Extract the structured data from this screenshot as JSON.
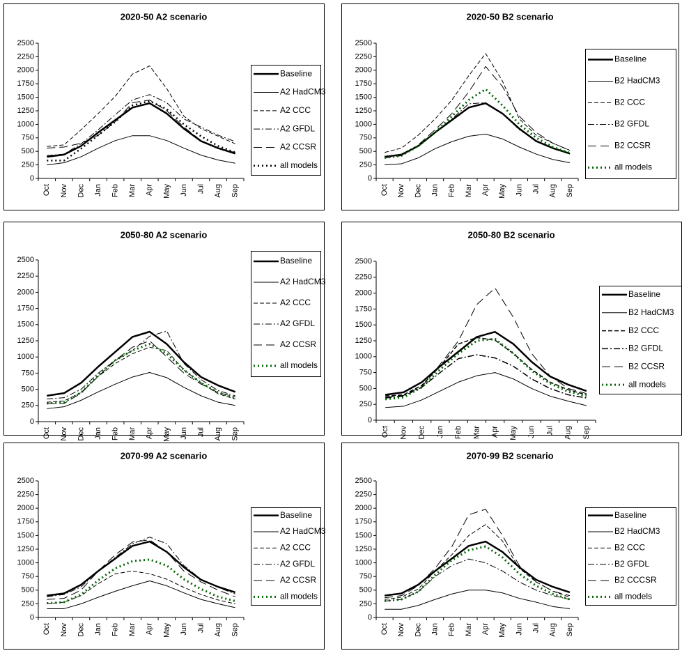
{
  "chart_data": [
    {
      "type": "line",
      "title": "2020-50 A2 scenario",
      "categories": [
        "Oct",
        "Nov",
        "Dec",
        "Jan",
        "Feb",
        "Mar",
        "Apr",
        "May",
        "Jun",
        "Jul",
        "Aug",
        "Sep"
      ],
      "ylim": [
        0,
        2500
      ],
      "yticks": [
        0,
        250,
        500,
        750,
        1000,
        1250,
        1500,
        1750,
        2000,
        2250,
        2500
      ],
      "series": [
        {
          "name": "Baseline",
          "color": "#000000",
          "line": "solid",
          "width": 2.5,
          "values": [
            400,
            440,
            600,
            850,
            1080,
            1310,
            1390,
            1200,
            920,
            690,
            560,
            460
          ]
        },
        {
          "name": "A2 HadCM3",
          "color": "#000000",
          "line": "solid",
          "width": 1,
          "values": [
            250,
            290,
            400,
            560,
            700,
            790,
            790,
            700,
            560,
            430,
            340,
            280
          ]
        },
        {
          "name": "A2 CCC",
          "color": "#000000",
          "line": "dashed",
          "width": 1,
          "values": [
            590,
            620,
            900,
            1200,
            1520,
            1930,
            2080,
            1660,
            1150,
            920,
            780,
            640
          ]
        },
        {
          "name": "A2 GFDL",
          "color": "#000000",
          "line": "dash-dot",
          "width": 1,
          "values": [
            420,
            450,
            640,
            900,
            1180,
            1450,
            1550,
            1400,
            1100,
            950,
            800,
            680
          ]
        },
        {
          "name": "A2 CCSR",
          "color": "#000000",
          "line": "long-dash",
          "width": 1,
          "values": [
            560,
            580,
            650,
            800,
            1050,
            1400,
            1450,
            1250,
            950,
            700,
            550,
            480
          ]
        },
        {
          "name": "all models",
          "color": "#000000",
          "line": "dotted",
          "width": 2.5,
          "values": [
            330,
            330,
            550,
            800,
            1050,
            1350,
            1430,
            1280,
            1000,
            780,
            600,
            480
          ]
        }
      ]
    },
    {
      "type": "line",
      "title": "2020-50 B2 scenario",
      "categories": [
        "Oct",
        "Nov",
        "Dec",
        "Jan",
        "Feb",
        "Mar",
        "Apr",
        "May",
        "Jun",
        "Jul",
        "Aug",
        "Sep"
      ],
      "ylim": [
        0,
        2500
      ],
      "yticks": [
        0,
        250,
        500,
        750,
        1000,
        1250,
        1500,
        1750,
        2000,
        2250,
        2500
      ],
      "series": [
        {
          "name": "Baseline",
          "color": "#000000",
          "line": "solid",
          "width": 2.5,
          "values": [
            400,
            440,
            600,
            850,
            1080,
            1310,
            1390,
            1200,
            920,
            690,
            560,
            460
          ]
        },
        {
          "name": "B2 HadCM3",
          "color": "#000000",
          "line": "solid",
          "width": 1,
          "values": [
            250,
            270,
            380,
            550,
            680,
            780,
            820,
            730,
            580,
            450,
            350,
            290
          ]
        },
        {
          "name": "B2 CCC",
          "color": "#000000",
          "line": "dashed",
          "width": 1,
          "values": [
            480,
            560,
            800,
            1100,
            1450,
            1900,
            2310,
            1800,
            1100,
            800,
            650,
            520
          ]
        },
        {
          "name": "B2 GFDL",
          "color": "#000000",
          "line": "dash-dot",
          "width": 1,
          "values": [
            380,
            420,
            600,
            850,
            1100,
            1380,
            1400,
            1200,
            900,
            700,
            550,
            450
          ]
        },
        {
          "name": "B2 CCSR",
          "color": "#000000",
          "line": "long-dash",
          "width": 1,
          "values": [
            400,
            430,
            620,
            900,
            1200,
            1600,
            2070,
            1700,
            1150,
            850,
            650,
            520
          ]
        },
        {
          "name": "all models",
          "color": "#006400",
          "line": "dotted",
          "width": 3,
          "values": [
            380,
            420,
            600,
            850,
            1150,
            1450,
            1650,
            1350,
            1000,
            750,
            580,
            470
          ]
        }
      ]
    },
    {
      "type": "line",
      "title": "2050-80 A2 scenario",
      "categories": [
        "Oct",
        "Nov",
        "Dec",
        "Jan",
        "Feb",
        "Mar",
        "Apr",
        "May",
        "Jun",
        "Jul",
        "Aug",
        "Sep"
      ],
      "ylim": [
        0,
        2500
      ],
      "yticks": [
        0,
        250,
        500,
        750,
        1000,
        1250,
        1500,
        1750,
        2000,
        2250,
        2500
      ],
      "series": [
        {
          "name": "Baseline",
          "color": "#000000",
          "line": "solid",
          "width": 2.5,
          "values": [
            400,
            440,
            600,
            850,
            1080,
            1310,
            1390,
            1200,
            920,
            690,
            560,
            460
          ]
        },
        {
          "name": "A2 HadCM3",
          "color": "#000000",
          "line": "solid",
          "width": 1,
          "values": [
            200,
            230,
            330,
            460,
            580,
            690,
            760,
            680,
            530,
            400,
            300,
            250
          ]
        },
        {
          "name": "A2 CCC",
          "color": "#000000",
          "line": "dashed",
          "width": 1,
          "values": [
            300,
            320,
            450,
            700,
            900,
            1050,
            1150,
            1100,
            800,
            600,
            430,
            350
          ]
        },
        {
          "name": "A2 GFDL",
          "color": "#000000",
          "line": "dash-dot",
          "width": 1,
          "values": [
            350,
            370,
            500,
            750,
            950,
            1100,
            1320,
            1400,
            900,
            650,
            480,
            400
          ]
        },
        {
          "name": "A2 CCSR",
          "color": "#000000",
          "line": "long-dash",
          "width": 1,
          "values": [
            280,
            280,
            440,
            700,
            950,
            1150,
            1250,
            1000,
            750,
            580,
            450,
            380
          ]
        },
        {
          "name": "all models",
          "color": "#006400",
          "line": "dotted",
          "width": 3,
          "values": [
            280,
            300,
            450,
            720,
            950,
            1100,
            1200,
            1050,
            800,
            600,
            450,
            370
          ]
        }
      ]
    },
    {
      "type": "line",
      "title": "2050-80 B2 scenario",
      "categories": [
        "Oct",
        "Nov",
        "Dec",
        "Jan",
        "Feb",
        "Mar",
        "Apr",
        "May",
        "Jun",
        "Jul",
        "Aug",
        "Sep"
      ],
      "ylim": [
        0,
        2500
      ],
      "yticks": [
        0,
        250,
        500,
        750,
        1000,
        1250,
        1500,
        1750,
        2000,
        2250,
        2500
      ],
      "series": [
        {
          "name": "Baseline",
          "color": "#000000",
          "line": "solid",
          "width": 2.5,
          "values": [
            400,
            440,
            600,
            850,
            1080,
            1310,
            1390,
            1200,
            920,
            690,
            560,
            460
          ]
        },
        {
          "name": "B2 HadCM3",
          "color": "#000000",
          "line": "solid",
          "width": 1,
          "values": [
            200,
            220,
            320,
            460,
            600,
            700,
            750,
            650,
            500,
            380,
            300,
            230
          ]
        },
        {
          "name": "B2 CCC",
          "color": "#000000",
          "line": "dashed",
          "width": 1.5,
          "values": [
            380,
            400,
            550,
            850,
            1200,
            1300,
            1260,
            1050,
            800,
            600,
            480,
            400
          ]
        },
        {
          "name": "B2 GFDL",
          "color": "#000000",
          "line": "dash-dot",
          "width": 1.5,
          "values": [
            350,
            380,
            520,
            750,
            970,
            1030,
            980,
            850,
            650,
            500,
            400,
            350
          ]
        },
        {
          "name": "B2 CCSR",
          "color": "#000000",
          "line": "long-dash",
          "width": 1,
          "values": [
            360,
            390,
            530,
            880,
            1250,
            1820,
            2080,
            1620,
            1050,
            700,
            500,
            420
          ]
        },
        {
          "name": "all models",
          "color": "#006400",
          "line": "dotted",
          "width": 3,
          "values": [
            330,
            360,
            520,
            800,
            1050,
            1250,
            1280,
            1050,
            780,
            580,
            450,
            380
          ]
        }
      ]
    },
    {
      "type": "line",
      "title": "2070-99 A2 scenario",
      "categories": [
        "Oct",
        "Nov",
        "Dec",
        "Jan",
        "Feb",
        "Mar",
        "Apr",
        "May",
        "Jun",
        "Jul",
        "Aug",
        "Sep"
      ],
      "ylim": [
        0,
        2500
      ],
      "yticks": [
        0,
        250,
        500,
        750,
        1000,
        1250,
        1500,
        1750,
        2000,
        2250,
        2500
      ],
      "series": [
        {
          "name": "Baseline",
          "color": "#000000",
          "line": "solid",
          "width": 2.5,
          "values": [
            400,
            440,
            600,
            850,
            1080,
            1310,
            1390,
            1200,
            920,
            690,
            560,
            460
          ]
        },
        {
          "name": "A2 HadCM3",
          "color": "#000000",
          "line": "solid",
          "width": 1,
          "values": [
            160,
            160,
            250,
            370,
            480,
            580,
            670,
            580,
            450,
            330,
            250,
            180
          ]
        },
        {
          "name": "A2 CCC",
          "color": "#000000",
          "line": "dashed",
          "width": 1,
          "values": [
            250,
            280,
            400,
            620,
            800,
            850,
            800,
            700,
            550,
            420,
            320,
            250
          ]
        },
        {
          "name": "A2 GFDL",
          "color": "#000000",
          "line": "dash-dot",
          "width": 1,
          "values": [
            380,
            420,
            560,
            850,
            1100,
            1350,
            1470,
            1350,
            950,
            700,
            550,
            430
          ]
        },
        {
          "name": "A2 CCSR",
          "color": "#000000",
          "line": "long-dash",
          "width": 1,
          "values": [
            330,
            350,
            500,
            850,
            1150,
            1380,
            1420,
            1200,
            850,
            650,
            500,
            380
          ]
        },
        {
          "name": "all models",
          "color": "#006400",
          "line": "dotted",
          "width": 3,
          "values": [
            260,
            280,
            420,
            680,
            900,
            1030,
            1060,
            950,
            700,
            520,
            380,
            300
          ]
        }
      ]
    },
    {
      "type": "line",
      "title": "2070-99 B2 scenario",
      "categories": [
        "Oct",
        "Nov",
        "Dec",
        "Jan",
        "Feb",
        "Mar",
        "Apr",
        "May",
        "Jun",
        "Jul",
        "Aug",
        "Sep"
      ],
      "ylim": [
        0,
        2500
      ],
      "yticks": [
        0,
        250,
        500,
        750,
        1000,
        1250,
        1500,
        1750,
        2000,
        2250,
        2500
      ],
      "series": [
        {
          "name": "Baseline",
          "color": "#000000",
          "line": "solid",
          "width": 2.5,
          "values": [
            400,
            440,
            600,
            850,
            1080,
            1310,
            1390,
            1200,
            920,
            690,
            560,
            460
          ]
        },
        {
          "name": "B2 HadCM3",
          "color": "#000000",
          "line": "solid",
          "width": 1,
          "values": [
            150,
            150,
            220,
            330,
            430,
            500,
            500,
            450,
            350,
            280,
            200,
            160
          ]
        },
        {
          "name": "B2 CCC",
          "color": "#000000",
          "line": "dashed",
          "width": 1,
          "values": [
            330,
            370,
            520,
            850,
            1150,
            1500,
            1700,
            1400,
            900,
            650,
            480,
            370
          ]
        },
        {
          "name": "B2 GFDL",
          "color": "#000000",
          "line": "dash-dot",
          "width": 1,
          "values": [
            300,
            330,
            470,
            750,
            950,
            1070,
            1000,
            850,
            650,
            500,
            400,
            330
          ]
        },
        {
          "name": "B2 CCCSR",
          "color": "#000000",
          "line": "long-dash",
          "width": 1,
          "values": [
            360,
            400,
            580,
            900,
            1300,
            1880,
            1980,
            1500,
            950,
            650,
            480,
            400
          ]
        },
        {
          "name": "all models",
          "color": "#006400",
          "line": "dotted",
          "width": 3,
          "values": [
            300,
            330,
            470,
            780,
            1050,
            1230,
            1300,
            1100,
            800,
            580,
            430,
            330
          ]
        }
      ]
    }
  ]
}
